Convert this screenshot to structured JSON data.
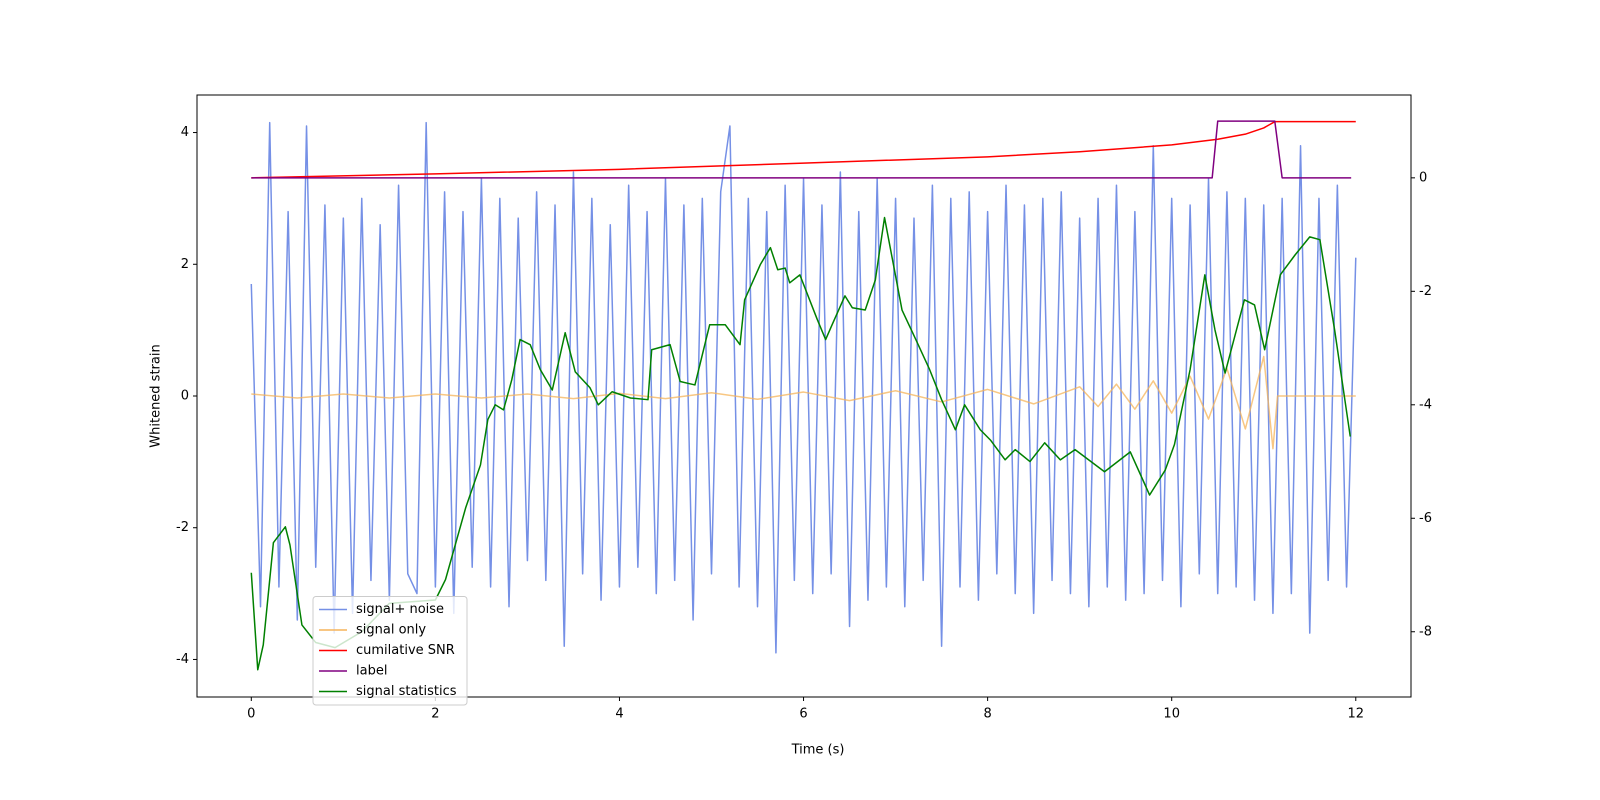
{
  "chart_data": {
    "type": "line",
    "xlabel": "Time (s)",
    "ylabel": "Whitened strain",
    "xlim": [
      -0.59,
      12.6
    ],
    "xticks": [
      0,
      2,
      4,
      6,
      8,
      10,
      12
    ],
    "ylim": [
      -4.57,
      4.57
    ],
    "yticks": [
      -4,
      -2,
      0,
      2,
      4
    ],
    "y2lim": [
      -9.15,
      1.46
    ],
    "y2ticks": [
      -8,
      -6,
      -4,
      -2,
      0
    ],
    "legend": "lower left",
    "series": [
      {
        "name": "signal+ noise",
        "color": "#7590e6",
        "x": [
          0,
          0.1,
          0.2,
          0.3,
          0.4,
          0.5,
          0.6,
          0.7,
          0.8,
          0.9,
          1.0,
          1.1,
          1.2,
          1.3,
          1.4,
          1.5,
          1.6,
          1.7,
          1.8,
          1.9,
          2.0,
          2.1,
          2.2,
          2.3,
          2.4,
          2.5,
          2.6,
          2.7,
          2.8,
          2.9,
          3.0,
          3.1,
          3.2,
          3.3,
          3.4,
          3.5,
          3.6,
          3.7,
          3.8,
          3.9,
          4.0,
          4.1,
          4.2,
          4.3,
          4.4,
          4.5,
          4.6,
          4.7,
          4.8,
          4.9,
          5.0,
          5.1,
          5.2,
          5.3,
          5.4,
          5.5,
          5.6,
          5.7,
          5.8,
          5.9,
          6.0,
          6.1,
          6.2,
          6.3,
          6.4,
          6.5,
          6.6,
          6.7,
          6.8,
          6.9,
          7.0,
          7.1,
          7.2,
          7.3,
          7.4,
          7.5,
          7.6,
          7.7,
          7.8,
          7.9,
          8.0,
          8.1,
          8.2,
          8.3,
          8.4,
          8.5,
          8.6,
          8.7,
          8.8,
          8.9,
          9.0,
          9.1,
          9.2,
          9.3,
          9.4,
          9.5,
          9.6,
          9.7,
          9.8,
          9.9,
          10.0,
          10.1,
          10.2,
          10.3,
          10.4,
          10.5,
          10.6,
          10.7,
          10.8,
          10.9,
          11.0,
          11.1,
          11.2,
          11.3,
          11.4,
          11.5,
          11.6,
          11.7,
          11.8,
          11.9,
          12.0
        ],
        "values": [
          1.7,
          -3.2,
          4.15,
          -2.9,
          2.8,
          -3.4,
          4.1,
          -2.6,
          2.9,
          -3.6,
          2.7,
          -3.3,
          3.0,
          -2.8,
          2.6,
          -3.1,
          3.2,
          -2.7,
          -3.0,
          4.15,
          -2.9,
          3.1,
          -3.3,
          2.8,
          -2.6,
          3.3,
          -2.9,
          3.0,
          -3.2,
          2.7,
          -2.5,
          3.1,
          -2.8,
          2.9,
          -3.8,
          3.4,
          -2.7,
          3.0,
          -3.1,
          2.6,
          -2.9,
          3.2,
          -2.6,
          2.8,
          -3.0,
          3.3,
          -2.8,
          2.9,
          -3.4,
          3.0,
          -2.7,
          3.1,
          4.1,
          -2.9,
          3.0,
          -3.2,
          2.8,
          -3.9,
          3.2,
          -2.8,
          3.3,
          -3.0,
          2.9,
          -2.7,
          3.4,
          -3.5,
          2.8,
          -3.1,
          3.3,
          -2.9,
          3.0,
          -3.2,
          2.7,
          -2.8,
          3.2,
          -3.8,
          3.0,
          -2.9,
          3.1,
          -3.1,
          2.8,
          -2.7,
          3.2,
          -3.0,
          2.9,
          -3.3,
          3.0,
          -2.8,
          3.1,
          -3.0,
          2.7,
          -3.2,
          3.0,
          -2.9,
          3.2,
          -3.1,
          2.8,
          -3.0,
          3.8,
          -2.8,
          3.0,
          -3.2,
          2.9,
          -2.7,
          3.3,
          -3.0,
          3.1,
          -2.9,
          3.0,
          -3.1,
          2.9,
          -3.3,
          3.0,
          -3.0,
          3.8,
          -3.6,
          3.0,
          -2.8,
          3.2,
          -2.9,
          2.1
        ]
      },
      {
        "name": "signal only",
        "color": "#f5b45a",
        "x": [
          0,
          0.5,
          1,
          1.5,
          2,
          2.5,
          3,
          3.5,
          4,
          4.5,
          5,
          5.5,
          6,
          6.5,
          7,
          7.5,
          8,
          8.5,
          9,
          9.2,
          9.4,
          9.6,
          9.8,
          10,
          10.2,
          10.4,
          10.6,
          10.8,
          11.0,
          11.1,
          11.15,
          12
        ],
        "values": [
          0.03,
          -0.03,
          0.03,
          -0.03,
          0.03,
          -0.03,
          0.03,
          -0.04,
          0.04,
          -0.04,
          0.05,
          -0.05,
          0.06,
          -0.07,
          0.08,
          -0.09,
          0.1,
          -0.12,
          0.14,
          -0.16,
          0.18,
          -0.2,
          0.23,
          -0.26,
          0.3,
          -0.35,
          0.42,
          -0.5,
          0.6,
          -0.8,
          0,
          0
        ]
      },
      {
        "name": "cumilative SNR",
        "color": "red",
        "axis": "y2",
        "x": [
          0,
          2,
          4,
          6,
          8,
          9,
          10,
          10.5,
          10.8,
          11.0,
          11.12,
          12
        ],
        "values": [
          0,
          0.07,
          0.15,
          0.26,
          0.37,
          0.46,
          0.58,
          0.68,
          0.77,
          0.88,
          0.99,
          0.99
        ]
      },
      {
        "name": "label",
        "color": "purple",
        "axis": "y2",
        "x": [
          0,
          10.44,
          10.5,
          11.12,
          11.2,
          11.95
        ],
        "values": [
          0,
          0,
          1,
          1,
          0,
          0
        ]
      },
      {
        "name": "signal statistics",
        "color": "green",
        "axis": "y2",
        "x": [
          0,
          0.07,
          0.13,
          0.24,
          0.37,
          0.42,
          0.55,
          0.7,
          0.91,
          1.2,
          1.5,
          2.0,
          2.11,
          2.33,
          2.49,
          2.57,
          2.65,
          2.74,
          2.83,
          2.92,
          3.03,
          3.14,
          3.27,
          3.41,
          3.52,
          3.68,
          3.77,
          3.92,
          4.12,
          4.31,
          4.35,
          4.55,
          4.66,
          4.82,
          4.98,
          5.15,
          5.31,
          5.36,
          5.53,
          5.64,
          5.72,
          5.8,
          5.85,
          5.96,
          6.15,
          6.24,
          6.31,
          6.45,
          6.53,
          6.67,
          6.78,
          6.88,
          7.07,
          7.22,
          7.37,
          7.5,
          7.65,
          7.75,
          7.92,
          8.03,
          8.19,
          8.3,
          8.46,
          8.62,
          8.79,
          8.95,
          9.27,
          9.55,
          9.76,
          9.93,
          10.03,
          10.2,
          10.36,
          10.47,
          10.58,
          10.79,
          10.9,
          11.01,
          11.18,
          11.34,
          11.5,
          11.61,
          11.77,
          11.94
        ],
        "values": [
          -6.96,
          -8.67,
          -8.23,
          -6.43,
          -6.15,
          -6.47,
          -7.88,
          -8.19,
          -8.28,
          -8.0,
          -7.5,
          -7.44,
          -7.08,
          -5.81,
          -5.06,
          -4.26,
          -4.0,
          -4.09,
          -3.56,
          -2.85,
          -2.94,
          -3.38,
          -3.74,
          -2.73,
          -3.42,
          -3.7,
          -4.0,
          -3.77,
          -3.88,
          -3.91,
          -3.03,
          -2.94,
          -3.59,
          -3.65,
          -2.59,
          -2.59,
          -2.94,
          -2.15,
          -1.53,
          -1.23,
          -1.62,
          -1.59,
          -1.85,
          -1.71,
          -2.5,
          -2.85,
          -2.59,
          -2.08,
          -2.29,
          -2.33,
          -1.8,
          -0.7,
          -2.33,
          -2.85,
          -3.38,
          -3.91,
          -4.44,
          -4.0,
          -4.44,
          -4.62,
          -4.97,
          -4.79,
          -5.0,
          -4.67,
          -4.97,
          -4.79,
          -5.18,
          -4.83,
          -5.59,
          -5.15,
          -4.7,
          -3.38,
          -1.71,
          -2.68,
          -3.44,
          -2.15,
          -2.24,
          -3.03,
          -1.71,
          -1.36,
          -1.04,
          -1.09,
          -2.68,
          -4.56
        ]
      }
    ]
  }
}
